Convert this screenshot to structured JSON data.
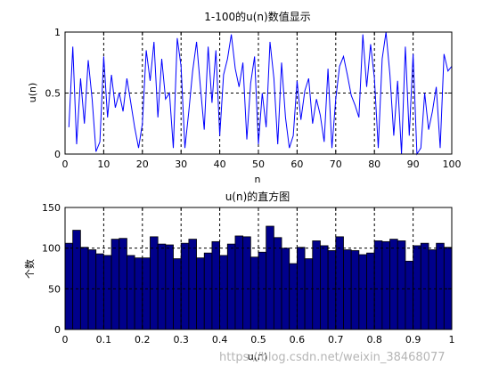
{
  "chart_data": [
    {
      "type": "line",
      "title": "1-100的u(n)数值显示",
      "xlabel": "n",
      "ylabel": "u(n)",
      "xlim": [
        0,
        100
      ],
      "ylim": [
        0,
        1
      ],
      "xticks": [
        0,
        10,
        20,
        30,
        40,
        50,
        60,
        70,
        80,
        90,
        100
      ],
      "yticks": [
        0,
        0.5,
        1
      ],
      "grid": true,
      "line_color": "#0000ff",
      "x": [
        1,
        2,
        3,
        4,
        5,
        6,
        7,
        8,
        9,
        10,
        11,
        12,
        13,
        14,
        15,
        16,
        17,
        18,
        19,
        20,
        21,
        22,
        23,
        24,
        25,
        26,
        27,
        28,
        29,
        30,
        31,
        32,
        33,
        34,
        35,
        36,
        37,
        38,
        39,
        40,
        41,
        42,
        43,
        44,
        45,
        46,
        47,
        48,
        49,
        50,
        51,
        52,
        53,
        54,
        55,
        56,
        57,
        58,
        59,
        60,
        61,
        62,
        63,
        64,
        65,
        66,
        67,
        68,
        69,
        70,
        71,
        72,
        73,
        74,
        75,
        76,
        77,
        78,
        79,
        80,
        81,
        82,
        83,
        84,
        85,
        86,
        87,
        88,
        89,
        90,
        91,
        92,
        93,
        94,
        95,
        96,
        97,
        98,
        99,
        100
      ],
      "y": [
        0.22,
        0.88,
        0.08,
        0.62,
        0.25,
        0.77,
        0.45,
        0.02,
        0.1,
        0.8,
        0.3,
        0.65,
        0.38,
        0.5,
        0.35,
        0.62,
        0.42,
        0.22,
        0.05,
        0.25,
        0.85,
        0.6,
        0.92,
        0.3,
        0.78,
        0.45,
        0.5,
        0.05,
        0.95,
        0.72,
        0.05,
        0.35,
        0.68,
        0.92,
        0.55,
        0.2,
        0.88,
        0.42,
        0.85,
        0.15,
        0.65,
        0.78,
        0.98,
        0.7,
        0.55,
        0.75,
        0.12,
        0.58,
        0.8,
        0.08,
        0.5,
        0.22,
        0.92,
        0.62,
        0.08,
        0.75,
        0.3,
        0.05,
        0.15,
        0.6,
        0.28,
        0.52,
        0.62,
        0.25,
        0.45,
        0.32,
        0.1,
        0.7,
        0.05,
        0.45,
        0.72,
        0.8,
        0.65,
        0.48,
        0.4,
        0.3,
        0.98,
        0.55,
        0.9,
        0.62,
        0.05,
        0.78,
        1.0,
        0.65,
        0.15,
        0.6,
        0.0,
        0.88,
        0.15,
        0.82,
        0.0,
        0.05,
        0.5,
        0.2,
        0.35,
        0.55,
        0.05,
        0.82,
        0.68,
        0.72
      ]
    },
    {
      "type": "bar",
      "title": "u(n)的直方图",
      "xlabel": "u(n)",
      "ylabel": "个数",
      "xlim": [
        0,
        1
      ],
      "ylim": [
        0,
        150
      ],
      "xticks": [
        0,
        0.1,
        0.2,
        0.3,
        0.4,
        0.5,
        0.6,
        0.7,
        0.8,
        0.9,
        1
      ],
      "yticks": [
        0,
        50,
        100,
        150
      ],
      "grid": true,
      "bar_color": "#00008b",
      "bin_width": 0.02,
      "values": [
        106,
        122,
        101,
        98,
        93,
        91,
        111,
        112,
        91,
        88,
        88,
        114,
        105,
        104,
        87,
        106,
        111,
        88,
        94,
        108,
        91,
        105,
        115,
        114,
        89,
        95,
        127,
        113,
        100,
        81,
        101,
        87,
        109,
        103,
        97,
        114,
        98,
        97,
        92,
        94,
        109,
        108,
        111,
        109,
        84,
        103,
        106,
        98,
        106,
        101
      ]
    }
  ],
  "watermark": "https://blog.csdn.net/weixin_38468077"
}
